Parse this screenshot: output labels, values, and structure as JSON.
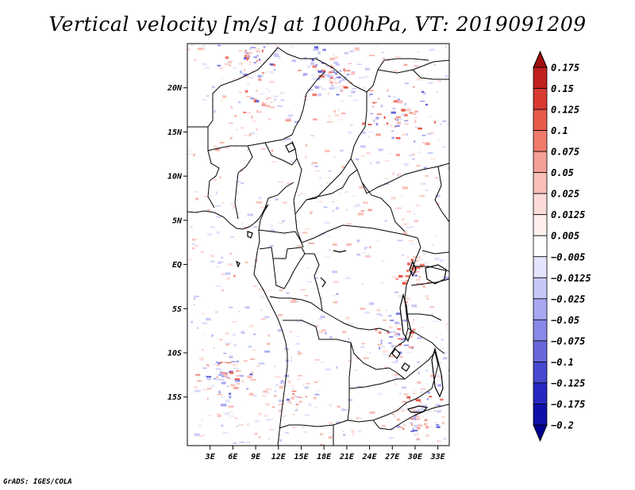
{
  "title": "Vertical velocity [m/s] at 1000hPa, VT: 2019091209",
  "credit": "GrADS: IGES/COLA",
  "map": {
    "lon_range": [
      0,
      34.5
    ],
    "lat_range": [
      -20.5,
      25
    ],
    "lat_ticks": [
      {
        "value": 20,
        "label": "20N"
      },
      {
        "value": 15,
        "label": "15N"
      },
      {
        "value": 10,
        "label": "10N"
      },
      {
        "value": 5,
        "label": "5N"
      },
      {
        "value": 0,
        "label": "EQ"
      },
      {
        "value": -5,
        "label": "5S"
      },
      {
        "value": -10,
        "label": "10S"
      },
      {
        "value": -15,
        "label": "15S"
      }
    ],
    "lon_ticks": [
      {
        "value": 3,
        "label": "3E"
      },
      {
        "value": 6,
        "label": "6E"
      },
      {
        "value": 9,
        "label": "9E"
      },
      {
        "value": 12,
        "label": "12E"
      },
      {
        "value": 15,
        "label": "15E"
      },
      {
        "value": 18,
        "label": "18E"
      },
      {
        "value": 21,
        "label": "21E"
      },
      {
        "value": 24,
        "label": "24E"
      },
      {
        "value": 27,
        "label": "27E"
      },
      {
        "value": 30,
        "label": "30E"
      },
      {
        "value": 33,
        "label": "33E"
      }
    ]
  },
  "colorbar": {
    "levels": [
      "0.175",
      "0.15",
      "0.125",
      "0.1",
      "0.075",
      "0.05",
      "0.025",
      "0.0125",
      "0.005",
      "-0.005",
      "-0.0125",
      "-0.025",
      "-0.05",
      "-0.075",
      "-0.1",
      "-0.125",
      "-0.175",
      "-0.2"
    ],
    "colors": [
      "#a01010",
      "#c02020",
      "#d83a32",
      "#e85a4a",
      "#f07a6a",
      "#f4a096",
      "#f8c0b8",
      "#fcdcd8",
      "#fff0ee",
      "#ffffff",
      "#e4e4fc",
      "#c8c8f8",
      "#a8a8f2",
      "#8888e8",
      "#6868dc",
      "#4848d0",
      "#2828c0",
      "#1010a8",
      "#000090"
    ]
  }
}
